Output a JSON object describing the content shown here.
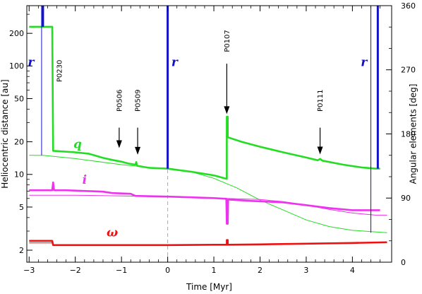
{
  "chart_data": {
    "type": "line",
    "title": "",
    "xlabel": "Time [Myr]",
    "ylabel_left": "Heliocentric distance [au]",
    "ylabel_right": "Angular elements [deg]",
    "xlim": [
      -3.05,
      4.85
    ],
    "ylim_left": [
      1.55,
      360
    ],
    "yscale_left": "log",
    "ylim_right": [
      0,
      360
    ],
    "x_ticks": [
      -3,
      -2,
      -1,
      0,
      1,
      2,
      3,
      4
    ],
    "x_tick_labels": [
      "−3",
      "−2",
      "−1",
      "0",
      "1",
      "2",
      "3",
      "4"
    ],
    "y_left_ticks": [
      2,
      5,
      10,
      20,
      50,
      100,
      200
    ],
    "y_left_tick_labels": [
      "2",
      "5",
      "10",
      "20",
      "50",
      "100",
      "200"
    ],
    "y_right_ticks": [
      0,
      90,
      180,
      270,
      360
    ],
    "y_right_tick_labels": [
      "0",
      "90",
      "180",
      "270",
      "360"
    ],
    "colors": {
      "q": "#22dd22",
      "i": "#ee33ee",
      "omega": "#ee1111",
      "r": "#1111cc",
      "dashed": "#aaaaaa"
    },
    "series": [
      {
        "name": "q",
        "label": "q",
        "label_pos": [
          -1.95,
          17.5
        ],
        "axis": "left",
        "thick": [
          [
            -3.0,
            230
          ],
          [
            -2.5,
            230
          ],
          [
            -2.48,
            16.5
          ],
          [
            -2.0,
            16.0
          ],
          [
            -1.7,
            15.5
          ],
          [
            -1.4,
            14.2
          ],
          [
            -1.2,
            13.6
          ],
          [
            -1.0,
            13.1
          ],
          [
            -0.85,
            12.6
          ],
          [
            -0.7,
            12.3
          ],
          [
            -0.68,
            13.0
          ],
          [
            -0.66,
            12.0
          ],
          [
            -0.4,
            11.5
          ],
          [
            0.0,
            11.3
          ],
          [
            0.5,
            10.6
          ],
          [
            1.0,
            9.8
          ],
          [
            1.28,
            9.1
          ],
          [
            1.28,
            34
          ],
          [
            1.3,
            34
          ],
          [
            1.3,
            22
          ],
          [
            1.6,
            20
          ],
          [
            2.0,
            18
          ],
          [
            2.5,
            16
          ],
          [
            3.0,
            14.3
          ],
          [
            3.25,
            13.5
          ],
          [
            3.3,
            13.9
          ],
          [
            3.35,
            13.4
          ],
          [
            3.8,
            12.3
          ],
          [
            4.2,
            11.6
          ],
          [
            4.5,
            11.3
          ],
          [
            4.6,
            11.3
          ]
        ],
        "thin": [
          [
            -3.0,
            15.0
          ],
          [
            -2.7,
            15.0
          ],
          [
            -2.0,
            14.0
          ],
          [
            -1.0,
            12.3
          ],
          [
            0.0,
            11.2
          ],
          [
            0.5,
            10.6
          ],
          [
            1.0,
            9.2
          ],
          [
            1.5,
            7.5
          ],
          [
            2.0,
            5.8
          ],
          [
            2.5,
            4.7
          ],
          [
            3.0,
            3.8
          ],
          [
            3.5,
            3.3
          ],
          [
            4.0,
            3.05
          ],
          [
            4.5,
            2.95
          ],
          [
            4.75,
            2.9
          ]
        ]
      },
      {
        "name": "i",
        "label": "i",
        "label_pos": [
          -1.8,
          110
        ],
        "axis": "right",
        "thick": [
          [
            -3.0,
            101
          ],
          [
            -2.5,
            101
          ],
          [
            -2.48,
            112
          ],
          [
            -2.46,
            101
          ],
          [
            -2.2,
            101
          ],
          [
            -1.4,
            99
          ],
          [
            -1.2,
            97
          ],
          [
            -0.8,
            96
          ],
          [
            -0.7,
            93
          ],
          [
            0.0,
            92
          ],
          [
            0.5,
            91
          ],
          [
            1.0,
            90
          ],
          [
            1.27,
            89
          ],
          [
            1.28,
            54
          ],
          [
            1.3,
            54
          ],
          [
            1.31,
            88
          ],
          [
            1.8,
            86
          ],
          [
            2.5,
            84
          ],
          [
            3.0,
            80
          ],
          [
            3.5,
            76
          ],
          [
            4.0,
            73
          ],
          [
            4.6,
            73
          ]
        ],
        "thin": [
          [
            -3.0,
            94
          ],
          [
            -2.0,
            94
          ],
          [
            -1.0,
            93
          ],
          [
            0.0,
            92
          ],
          [
            1.0,
            90
          ],
          [
            2.0,
            88
          ],
          [
            2.5,
            85
          ],
          [
            3.0,
            80
          ],
          [
            3.5,
            74
          ],
          [
            4.0,
            69
          ],
          [
            4.5,
            66
          ],
          [
            4.75,
            66
          ]
        ]
      },
      {
        "name": "ω",
        "label": "ω",
        "label_pos": [
          -1.2,
          36
        ],
        "axis": "right",
        "thick": [
          [
            -3.0,
            30
          ],
          [
            -2.5,
            30
          ],
          [
            -2.48,
            24
          ],
          [
            -1.0,
            24
          ],
          [
            0.0,
            24
          ],
          [
            1.0,
            24.5
          ],
          [
            1.28,
            24.5
          ],
          [
            1.28,
            31
          ],
          [
            1.3,
            31
          ],
          [
            1.3,
            24.5
          ],
          [
            2.0,
            25
          ],
          [
            3.0,
            26
          ],
          [
            4.0,
            27
          ],
          [
            4.75,
            28
          ]
        ],
        "thin": [
          [
            -3.0,
            27
          ],
          [
            -2.5,
            27
          ]
        ]
      }
    ],
    "r_lines": [
      {
        "label": "r",
        "x_thick": -2.7,
        "x_thin": -2.73,
        "thin_bottom": 15.0,
        "label_pos": [
          -2.96,
          100
        ]
      },
      {
        "label": "r",
        "x_thick": 0.0,
        "x_thin": null,
        "thin_bottom": null,
        "label_pos": [
          0.15,
          100
        ]
      },
      {
        "label": "r",
        "x_thick": 4.55,
        "x_thin": 4.4,
        "thin_bottom": 2.9,
        "label_pos": [
          4.25,
          100
        ]
      }
    ],
    "dashed_line": {
      "x": 0.0,
      "from": 1.55,
      "to": 11.3
    },
    "annotations": [
      {
        "label": "P0230",
        "x": -2.35,
        "text_center_y": 90,
        "arrow": false
      },
      {
        "label": "P0506",
        "x": -1.05,
        "text_center_y": 48,
        "arrow": true,
        "arrow_from": 27,
        "arrow_to": 17.5
      },
      {
        "label": "P0509",
        "x": -0.65,
        "text_center_y": 48,
        "arrow": true,
        "arrow_from": 27,
        "arrow_to": 15.2
      },
      {
        "label": "P0107",
        "x": 1.28,
        "text_center_y": 170,
        "arrow": true,
        "arrow_from": 105,
        "arrow_to": 36
      },
      {
        "label": "P0111",
        "x": 3.3,
        "text_center_y": 48,
        "arrow": true,
        "arrow_from": 27,
        "arrow_to": 15.3
      }
    ]
  }
}
